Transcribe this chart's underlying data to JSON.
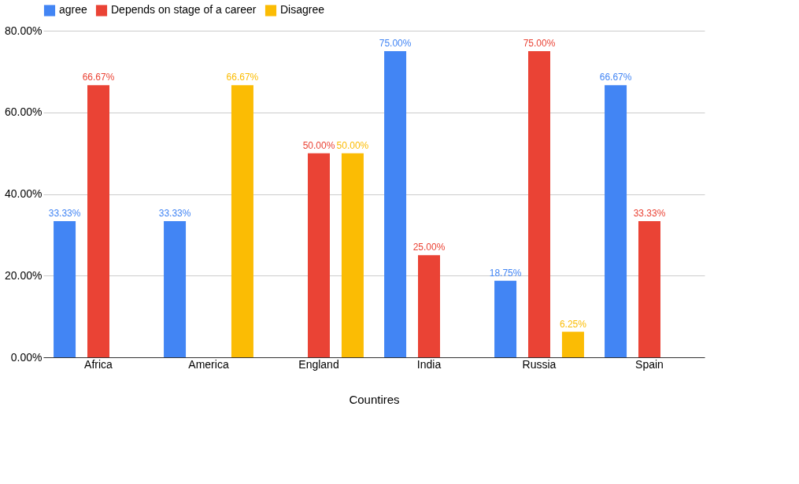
{
  "chart_data": {
    "type": "bar",
    "xlabel": "Countires",
    "categories": [
      "Africa",
      "America",
      "England",
      "India",
      "Russia",
      "Spain"
    ],
    "series": [
      {
        "name": "agree",
        "color": "#4285f4",
        "values": [
          33.33,
          33.33,
          null,
          75,
          18.75,
          66.67
        ],
        "value_labels": [
          "33.33%",
          "33.33%",
          null,
          "75.00%",
          "18.75%",
          "66.67%"
        ]
      },
      {
        "name": "Depends on stage of a career",
        "color": "#ea4335",
        "values": [
          66.67,
          null,
          50,
          25,
          75,
          33.33
        ],
        "value_labels": [
          "66.67%",
          null,
          "50.00%",
          "25.00%",
          "75.00%",
          "33.33%"
        ]
      },
      {
        "name": "Disagree",
        "color": "#fbbc04",
        "values": [
          null,
          66.67,
          50,
          null,
          6.25,
          null
        ],
        "value_labels": [
          null,
          "66.67%",
          "50.00%",
          null,
          "6.25%",
          null
        ]
      }
    ],
    "ylim": [
      0,
      80
    ],
    "yticks": [
      {
        "value": 0,
        "label": "0.00%"
      },
      {
        "value": 20,
        "label": "20.00%"
      },
      {
        "value": 40,
        "label": "40.00%"
      },
      {
        "value": 60,
        "label": "60.00%"
      },
      {
        "value": 80,
        "label": "80.00%"
      }
    ],
    "grid": "y",
    "legend": "top"
  }
}
